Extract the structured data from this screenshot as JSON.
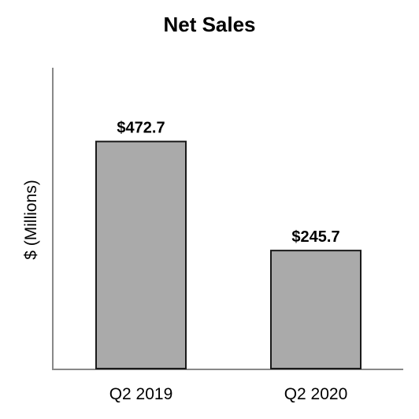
{
  "chart_data": {
    "type": "bar",
    "title": "Net Sales",
    "xlabel": "",
    "ylabel": "$ (Millions)",
    "categories": [
      "Q2 2019",
      "Q2 2020"
    ],
    "values": [
      472.7,
      245.7
    ],
    "data_labels": [
      "$472.7",
      "$245.7"
    ],
    "ylim": [
      0,
      600
    ],
    "grid": false,
    "legend": "none",
    "bar_color": "#aaaaaa",
    "bar_edge_color": "#1a1a1a",
    "axis_color": "#888888"
  }
}
